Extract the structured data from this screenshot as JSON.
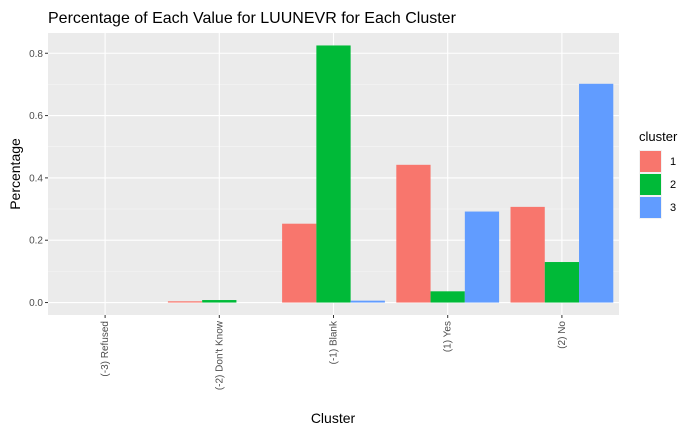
{
  "chart_data": {
    "type": "bar",
    "title": "Percentage of Each Value for LUUNEVR for Each Cluster",
    "xlabel": "Cluster",
    "ylabel": "Percentage",
    "categories": [
      "(-3) Refused",
      "(-2) Don't Know",
      "(-1) Blank",
      "(1) Yes",
      "(2) No"
    ],
    "ylim": [
      -0.04,
      0.865
    ],
    "yticks": [
      0.0,
      0.2,
      0.4,
      0.6,
      0.8
    ],
    "ytick_labels": [
      "0.0",
      "0.2",
      "0.4",
      "0.6",
      "0.8"
    ],
    "grid": true,
    "legend": {
      "title": "cluster",
      "position": "right"
    },
    "series": [
      {
        "name": "1",
        "color": "#F8766D",
        "values": [
          0.0,
          0.004,
          0.253,
          0.442,
          0.307
        ]
      },
      {
        "name": "2",
        "color": "#00BA38",
        "values": [
          0.0,
          0.008,
          0.825,
          0.036,
          0.13
        ]
      },
      {
        "name": "3",
        "color": "#619CFF",
        "values": [
          0.0,
          0.0,
          0.006,
          0.292,
          0.702
        ]
      }
    ]
  }
}
